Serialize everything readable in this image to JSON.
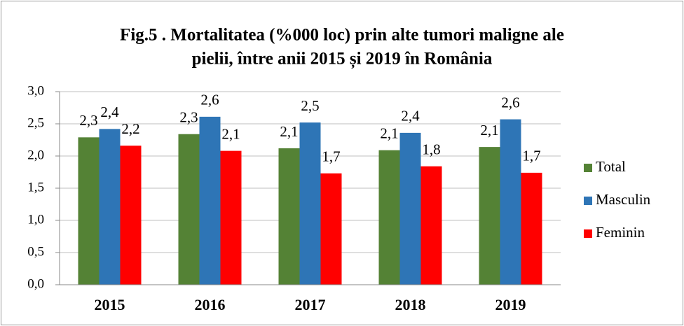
{
  "chart_data": {
    "type": "bar",
    "title": [
      "Fig.5 . Mortalitatea (%000 loc) prin alte tumori maligne ale",
      "pielii, între anii 2015 și 2019 în România"
    ],
    "categories": [
      "2015",
      "2016",
      "2017",
      "2018",
      "2019"
    ],
    "series": [
      {
        "name": "Total",
        "color": "#548235",
        "values": [
          2.29,
          2.34,
          2.12,
          2.09,
          2.14
        ],
        "value_labels": [
          "2,3",
          "2,3",
          "2,1",
          "2,1",
          "2,1"
        ]
      },
      {
        "name": "Masculin",
        "color": "#2e75b6",
        "values": [
          2.42,
          2.61,
          2.52,
          2.36,
          2.57
        ],
        "value_labels": [
          "2,4",
          "2,6",
          "2,5",
          "2,4",
          "2,6"
        ]
      },
      {
        "name": "Feminin",
        "color": "#ff0000",
        "values": [
          2.16,
          2.08,
          1.73,
          1.84,
          1.74
        ],
        "value_labels": [
          "2,2",
          "2,1",
          "1,7",
          "1,8",
          "1,7"
        ]
      }
    ],
    "ylim": [
      0,
      3
    ],
    "yticks": [
      {
        "value": 0,
        "label": "0,0"
      },
      {
        "value": 0.5,
        "label": "0,5"
      },
      {
        "value": 1,
        "label": "1,0"
      },
      {
        "value": 1.5,
        "label": "1,5"
      },
      {
        "value": 2,
        "label": "2,0"
      },
      {
        "value": 2.5,
        "label": "2,5"
      },
      {
        "value": 3,
        "label": "3,0"
      }
    ],
    "grid": true,
    "legend": "right"
  }
}
